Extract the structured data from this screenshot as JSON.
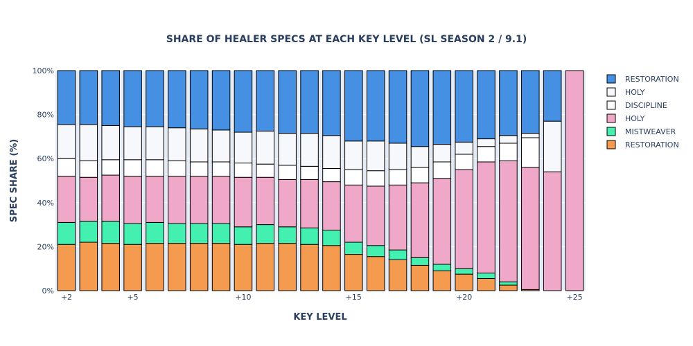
{
  "chart_data": {
    "type": "bar",
    "stacked": true,
    "title": "SHARE OF HEALER SPECS AT EACH KEY LEVEL (SL SEASON 2 / 9.1)",
    "xlabel": "KEY LEVEL",
    "ylabel": "SPEC SHARE (%)",
    "ylim": [
      0,
      100
    ],
    "y_ticks": [
      "0%",
      "20%",
      "40%",
      "60%",
      "80%",
      "100%"
    ],
    "x_tick_labels": {
      "2": "+2",
      "5": "+5",
      "10": "+10",
      "15": "+15",
      "20": "+20",
      "25": "+25"
    },
    "categories": [
      2,
      3,
      4,
      5,
      6,
      7,
      8,
      9,
      10,
      11,
      12,
      13,
      14,
      15,
      16,
      17,
      18,
      19,
      20,
      21,
      22,
      23,
      24,
      25
    ],
    "legend_position": "right",
    "series": [
      {
        "name": "RESTORATION",
        "color": "#f59b4f",
        "values": [
          21,
          22,
          21.5,
          21,
          21.5,
          21.5,
          21.5,
          21.5,
          21,
          21.5,
          21.5,
          21,
          20.5,
          16.5,
          15.5,
          14,
          11.5,
          9,
          7.5,
          5.5,
          2.5,
          0.5,
          0,
          0
        ]
      },
      {
        "name": "MISTWEAVER",
        "color": "#44f0b0",
        "values": [
          10,
          9.5,
          10,
          9.5,
          9.5,
          9,
          9,
          9,
          8,
          8.5,
          7.5,
          7.5,
          7,
          5.5,
          5,
          4.5,
          3.5,
          3,
          2.5,
          2.5,
          1.5,
          0,
          0,
          0
        ]
      },
      {
        "name": "HOLY",
        "color": "#f0a8c8",
        "values": [
          21,
          20,
          21,
          21.5,
          21,
          21.5,
          21.5,
          21.5,
          22.5,
          21.5,
          21.5,
          22,
          22,
          26,
          27,
          29.5,
          34,
          39,
          45,
          50.5,
          55,
          55.5,
          54,
          100
        ]
      },
      {
        "name": "DISCIPLINE",
        "color": "#ffffff",
        "values": [
          8,
          7.5,
          7,
          7.5,
          7.5,
          7,
          6.5,
          6.5,
          6.5,
          6,
          6.5,
          6,
          6,
          7,
          7,
          7,
          7,
          7.5,
          7,
          7,
          8,
          13.5,
          0,
          0
        ]
      },
      {
        "name": "HOLY",
        "color": "#f7f8fc",
        "values": [
          15.5,
          16.5,
          15.5,
          15,
          15,
          15,
          15,
          14.5,
          14,
          15,
          14.5,
          15,
          15,
          13,
          13.5,
          12,
          9.5,
          8,
          5.5,
          3.5,
          3.5,
          2,
          23,
          0
        ]
      },
      {
        "name": "RESTORATION",
        "color": "#4590e3",
        "values": [
          24.5,
          24.5,
          25,
          25.5,
          25.5,
          26,
          26.5,
          27,
          28,
          27.5,
          28.5,
          28.5,
          29.5,
          32,
          32,
          33,
          34.5,
          33.5,
          32.5,
          31,
          29.5,
          28.5,
          23,
          0
        ]
      }
    ]
  }
}
